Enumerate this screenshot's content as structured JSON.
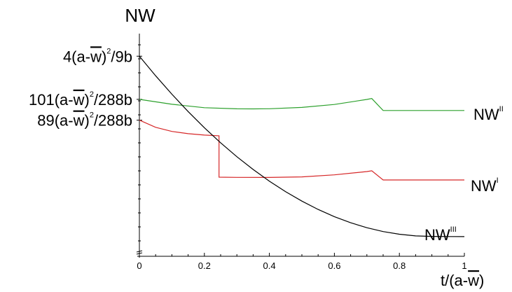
{
  "chart_data": {
    "type": "line",
    "ylabel": "NW",
    "xlabel_main": "t/(a-",
    "xlabel_over": "w",
    "xlabel_end": ")",
    "xlim": [
      0,
      1
    ],
    "ylim": [
      0,
      1
    ],
    "y_tick_labels": [
      {
        "value": 0.8765,
        "prefix": "4(a-",
        "over": "w",
        "close": ")",
        "sup": "2",
        "suffix": "/9b"
      },
      {
        "value": 0.6875,
        "prefix": "101(a-",
        "over": "w",
        "close": ")",
        "sup": "2",
        "suffix": "/288b"
      },
      {
        "value": 0.5963,
        "prefix": "89(a-",
        "over": "w",
        "close": ")",
        "sup": "2",
        "suffix": "/288b"
      }
    ],
    "x_ticks": [
      {
        "value": 0,
        "label": "0"
      },
      {
        "value": 0.2,
        "label": "0.2"
      },
      {
        "value": 0.4,
        "label": "0.4"
      },
      {
        "value": 0.6,
        "label": "0.6"
      },
      {
        "value": 0.8,
        "label": "0.8"
      },
      {
        "value": 1,
        "label": "1"
      }
    ],
    "series": [
      {
        "name": "NW",
        "sup": "II",
        "color": "#2ca02c",
        "x": [
          0,
          0.1,
          0.2,
          0.3,
          0.35,
          0.4,
          0.5,
          0.6,
          0.7,
          0.715,
          0.75,
          0.8,
          0.9,
          1.0
        ],
        "y": [
          0.6875,
          0.666,
          0.651,
          0.6461,
          0.6458,
          0.6463,
          0.652,
          0.665,
          0.687,
          0.691,
          0.6387,
          0.6387,
          0.6387,
          0.6387
        ]
      },
      {
        "name": "NW",
        "sup": "I",
        "color": "#d62728",
        "x": [
          0,
          0.05,
          0.1,
          0.15,
          0.2,
          0.245,
          0.245,
          0.3,
          0.4,
          0.5,
          0.6,
          0.7,
          0.715,
          0.75,
          0.8,
          0.9,
          1.0
        ],
        "y": [
          0.5963,
          0.565,
          0.547,
          0.537,
          0.531,
          0.528,
          0.3467,
          0.3457,
          0.3453,
          0.3478,
          0.3567,
          0.3713,
          0.3746,
          0.3343,
          0.3343,
          0.3343,
          0.3343
        ]
      },
      {
        "name": "NW",
        "sup": "III",
        "color": "#000000",
        "x": [
          0,
          0.05,
          0.1,
          0.15,
          0.2,
          0.25,
          0.3,
          0.35,
          0.4,
          0.45,
          0.5,
          0.55,
          0.6,
          0.65,
          0.7,
          0.75,
          0.8,
          0.85,
          0.9,
          0.95,
          1.0
        ],
        "y": [
          0.8765,
          0.7908,
          0.71,
          0.6342,
          0.5633,
          0.4973,
          0.4363,
          0.3803,
          0.3292,
          0.2829,
          0.2416,
          0.2051,
          0.1736,
          0.147,
          0.1253,
          0.1084,
          0.0965,
          0.0894,
          0.087,
          0.0865,
          0.0863
        ]
      }
    ]
  }
}
